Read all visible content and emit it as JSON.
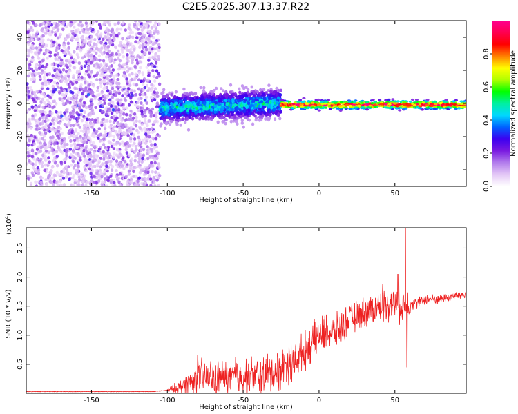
{
  "title": "C2E5.2025.307.13.37.R22",
  "chart_data": [
    {
      "type": "heatmap",
      "name": "spectrogram",
      "xlabel": "Height of straight line (km)",
      "ylabel": "Frequency (Hz)",
      "xlim": [
        -193,
        97
      ],
      "ylim": [
        -50,
        50
      ],
      "x_ticks": [
        -150,
        -100,
        -50,
        0,
        50
      ],
      "y_ticks": [
        -40,
        -20,
        0,
        20,
        40
      ],
      "colorbar": {
        "label": "Normalized spectral amplitude",
        "range": [
          0,
          1
        ],
        "ticks": [
          0.0,
          0.2,
          0.4,
          0.6,
          0.8
        ],
        "tick_labels": [
          "0.0",
          "0.2",
          "0.4",
          "0.6",
          "0.8"
        ],
        "colors": [
          "#ffffff",
          "#e4c8f6",
          "#b27cec",
          "#7a1ae0",
          "#3c00f0",
          "#0060ff",
          "#00d8ff",
          "#00f0a0",
          "#00ff00",
          "#b0ff00",
          "#ffff00",
          "#ff8000",
          "#ff0000",
          "#ff0050",
          "#ff0090"
        ]
      },
      "regions": [
        {
          "x_range": [
            -193,
            -105
          ],
          "freq_spread": 50,
          "amplitude": [
            0.05,
            0.3
          ],
          "desc": "diffuse purple scatter"
        },
        {
          "x_range": [
            -105,
            -25
          ],
          "freq_spread": 9,
          "amplitude": [
            0.2,
            0.55
          ],
          "desc": "blue-green core"
        },
        {
          "x_range": [
            -25,
            97
          ],
          "freq_spread": 3,
          "amplitude": [
            0.6,
            0.95
          ],
          "desc": "narrow red line near 0 Hz"
        }
      ]
    },
    {
      "type": "line",
      "name": "snr",
      "xlabel": "Height of straight line (km)",
      "ylabel": "SNR (10 * v/v)",
      "scale_label": "(x10",
      "scale_exp": "4",
      "scale_close": ")",
      "xlim": [
        -193,
        97
      ],
      "ylim": [
        0,
        2.85
      ],
      "x_ticks": [
        -150,
        -100,
        -50,
        0,
        50
      ],
      "y_ticks": [
        0.5,
        1.0,
        1.5,
        2.0,
        2.5
      ],
      "y_tick_labels": [
        "0.5",
        "1.0",
        "1.5",
        "2.0",
        "2.5"
      ],
      "color": "#ee2222",
      "trend_points": [
        [
          -193,
          0.03
        ],
        [
          -110,
          0.03
        ],
        [
          -100,
          0.05
        ],
        [
          -92,
          0.1
        ],
        [
          -85,
          0.2
        ],
        [
          -78,
          0.28
        ],
        [
          -70,
          0.26
        ],
        [
          -60,
          0.27
        ],
        [
          -50,
          0.28
        ],
        [
          -40,
          0.3
        ],
        [
          -30,
          0.35
        ],
        [
          -22,
          0.5
        ],
        [
          -15,
          0.6
        ],
        [
          -5,
          0.85
        ],
        [
          0,
          1.0
        ],
        [
          10,
          1.05
        ],
        [
          20,
          1.25
        ],
        [
          30,
          1.4
        ],
        [
          40,
          1.5
        ],
        [
          50,
          1.55
        ],
        [
          55,
          1.5
        ],
        [
          60,
          1.55
        ],
        [
          65,
          1.55
        ],
        [
          70,
          1.62
        ],
        [
          80,
          1.62
        ],
        [
          90,
          1.68
        ],
        [
          97,
          1.7
        ]
      ],
      "noise_points": [
        [
          -193,
          0.0
        ],
        [
          -110,
          0.01
        ],
        [
          -100,
          0.03
        ],
        [
          -92,
          0.12
        ],
        [
          -85,
          0.22
        ],
        [
          -75,
          0.3
        ],
        [
          -65,
          0.28
        ],
        [
          -50,
          0.3
        ],
        [
          -35,
          0.33
        ],
        [
          -25,
          0.35
        ],
        [
          -15,
          0.3
        ],
        [
          0,
          0.3
        ],
        [
          20,
          0.25
        ],
        [
          40,
          0.25
        ],
        [
          58,
          0.3
        ],
        [
          62,
          0.1
        ],
        [
          70,
          0.08
        ],
        [
          97,
          0.08
        ]
      ],
      "peaks": [
        [
          57,
          2.84
        ],
        [
          58,
          0.45
        ],
        [
          -18,
          0.2
        ],
        [
          -55,
          0.62
        ],
        [
          -80,
          0.65
        ],
        [
          5,
          1.35
        ],
        [
          20,
          1.5
        ],
        [
          42,
          1.88
        ],
        [
          52,
          2.05
        ]
      ]
    }
  ]
}
